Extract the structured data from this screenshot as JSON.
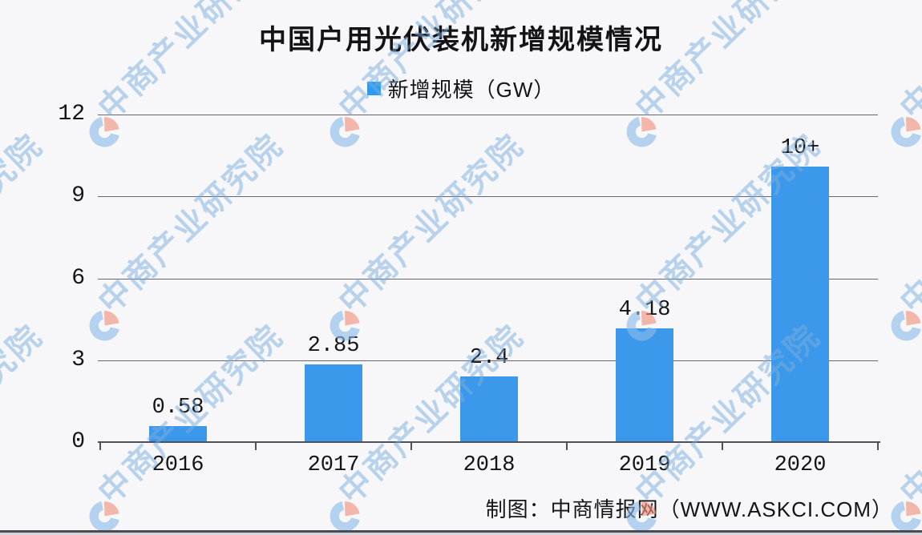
{
  "title": "中国户用光伏装机新增规模情况",
  "legend": {
    "label": "新增规模（GW）"
  },
  "chart_data": {
    "type": "bar",
    "title": "中国户用光伏装机新增规模情况",
    "series_name": "新增规模（GW）",
    "categories": [
      "2016",
      "2017",
      "2018",
      "2019",
      "2020"
    ],
    "values": [
      0.58,
      2.85,
      2.4,
      4.18,
      10.1
    ],
    "value_labels": [
      "0.58",
      "2.85",
      "2.4",
      "4.18",
      "10+"
    ],
    "xlabel": "",
    "ylabel": "",
    "ylim": [
      0,
      12
    ],
    "yticks": [
      0,
      3,
      6,
      9,
      12
    ],
    "grid": true,
    "legend_position": "top-center"
  },
  "footer": {
    "credit": "制图：中商情报网（WWW.ASKCI.COM）"
  },
  "watermark": {
    "text": "中商产业研究院",
    "logo": "askci-crescent-logo"
  },
  "colors": {
    "background": "#F7F7F9",
    "bar": "#3C98EA",
    "legend_marker": "#2D9BF1",
    "grid_line": "#67686F",
    "axis_line": "#505158",
    "text": "#141418",
    "watermark_text": "#7AAEDE",
    "watermark_logo_blue": "#8CBAE9",
    "watermark_logo_red": "#F0907A"
  }
}
